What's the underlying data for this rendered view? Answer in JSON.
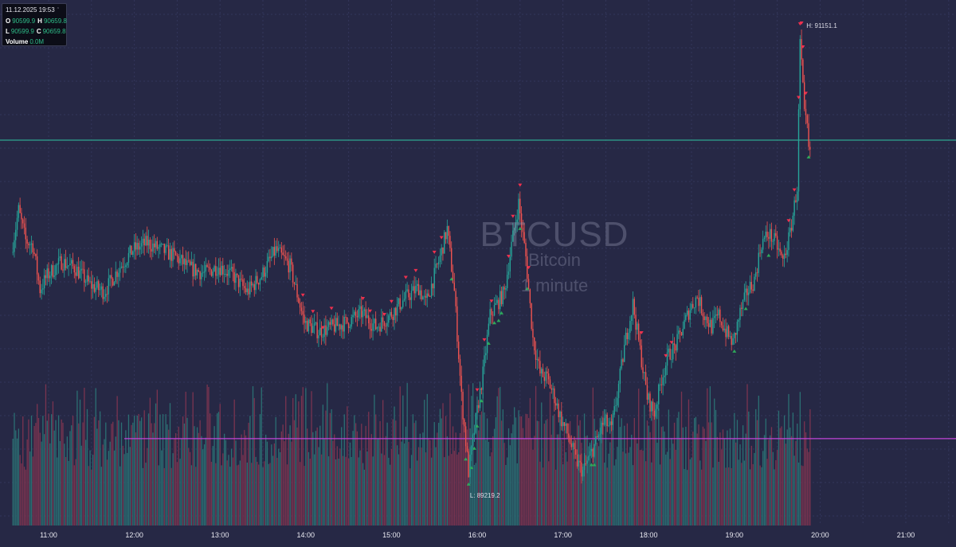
{
  "ohlc_panel": {
    "datetime": "11.12.2025 19:53",
    "o_label": "O",
    "o_value": "90599.9",
    "h_label": "H",
    "h_value": "90659.8",
    "l_label": "L",
    "l_value": "90599.9",
    "c_label": "C",
    "c_value": "90659.8",
    "volume_label": "Volume",
    "volume_value": "0.0M"
  },
  "watermark": {
    "symbol": "BTCUSD",
    "name": "Bitcoin",
    "interval": "1 minute"
  },
  "colors": {
    "background": "#262845",
    "grid": "#33365a",
    "up": "#26a69a",
    "down": "#ef5350",
    "volume_up": "#2b6f73",
    "volume_down": "#7a3450",
    "resistance_line": "#2fa58f",
    "support_line": "#c044d8",
    "sell_marker": "#f0304e",
    "buy_marker": "#2ea85a",
    "axis_text": "#e8e8f0"
  },
  "chart_data": {
    "type": "candlestick",
    "symbol": "BTCUSD",
    "interval": "1 minute",
    "x_tick_labels": [
      "11:00",
      "12:00",
      "13:00",
      "14:00",
      "15:00",
      "16:00",
      "17:00",
      "18:00",
      "19:00",
      "20:00",
      "21:00"
    ],
    "x_tick_times": [
      "11:00",
      "12:00",
      "13:00",
      "14:00",
      "15:00",
      "16:00",
      "17:00",
      "18:00",
      "19:00",
      "20:00",
      "21:00"
    ],
    "x_range": [
      "10:35",
      "21:35"
    ],
    "y_range": [
      89050,
      91300
    ],
    "high_annotation": {
      "label": "H: 91151.1",
      "time": "19:46",
      "price": 91151.1
    },
    "low_annotation": {
      "label": "L: 89219.2",
      "time": "15:56",
      "price": 89219.2
    },
    "horizontal_lines": [
      {
        "price": 90700,
        "role": "resistance"
      },
      {
        "price": 89422,
        "role": "support",
        "start_time": "11:53"
      }
    ],
    "price_path": [
      [
        "10:35",
        90220
      ],
      [
        "10:40",
        90400
      ],
      [
        "10:45",
        90270
      ],
      [
        "10:50",
        90250
      ],
      [
        "10:55",
        90060
      ],
      [
        "11:00",
        90120
      ],
      [
        "11:10",
        90180
      ],
      [
        "11:20",
        90150
      ],
      [
        "11:30",
        90080
      ],
      [
        "11:40",
        90050
      ],
      [
        "11:50",
        90150
      ],
      [
        "12:00",
        90230
      ],
      [
        "12:10",
        90260
      ],
      [
        "12:20",
        90230
      ],
      [
        "12:30",
        90200
      ],
      [
        "12:40",
        90150
      ],
      [
        "12:50",
        90130
      ],
      [
        "13:00",
        90160
      ],
      [
        "13:10",
        90120
      ],
      [
        "13:20",
        90050
      ],
      [
        "13:30",
        90120
      ],
      [
        "13:40",
        90230
      ],
      [
        "13:50",
        90160
      ],
      [
        "14:00",
        89920
      ],
      [
        "14:10",
        89880
      ],
      [
        "14:20",
        89900
      ],
      [
        "14:30",
        89920
      ],
      [
        "14:40",
        89960
      ],
      [
        "14:50",
        89900
      ],
      [
        "15:00",
        89950
      ],
      [
        "15:10",
        90020
      ],
      [
        "15:20",
        90070
      ],
      [
        "15:25",
        90000
      ],
      [
        "15:35",
        90200
      ],
      [
        "15:40",
        90320
      ],
      [
        "15:45",
        90050
      ],
      [
        "15:50",
        89600
      ],
      [
        "15:55",
        89280
      ],
      [
        "16:00",
        89500
      ],
      [
        "16:05",
        89700
      ],
      [
        "16:10",
        89950
      ],
      [
        "16:15",
        90000
      ],
      [
        "16:20",
        90050
      ],
      [
        "16:25",
        90250
      ],
      [
        "16:30",
        90430
      ],
      [
        "16:35",
        90200
      ],
      [
        "16:40",
        89850
      ],
      [
        "16:45",
        89700
      ],
      [
        "16:50",
        89680
      ],
      [
        "16:55",
        89600
      ],
      [
        "17:00",
        89500
      ],
      [
        "17:05",
        89430
      ],
      [
        "17:10",
        89330
      ],
      [
        "17:15",
        89280
      ],
      [
        "17:20",
        89350
      ],
      [
        "17:25",
        89420
      ],
      [
        "17:30",
        89500
      ],
      [
        "17:35",
        89460
      ],
      [
        "17:40",
        89650
      ],
      [
        "17:45",
        89850
      ],
      [
        "17:50",
        90000
      ],
      [
        "17:55",
        89800
      ],
      [
        "18:00",
        89600
      ],
      [
        "18:05",
        89530
      ],
      [
        "18:10",
        89680
      ],
      [
        "18:15",
        89780
      ],
      [
        "18:20",
        89820
      ],
      [
        "18:25",
        89900
      ],
      [
        "18:30",
        89980
      ],
      [
        "18:35",
        90030
      ],
      [
        "18:40",
        89950
      ],
      [
        "18:45",
        89900
      ],
      [
        "18:50",
        89950
      ],
      [
        "18:55",
        89880
      ],
      [
        "19:00",
        89830
      ],
      [
        "19:05",
        89960
      ],
      [
        "19:10",
        90050
      ],
      [
        "19:15",
        90100
      ],
      [
        "19:20",
        90260
      ],
      [
        "19:25",
        90300
      ],
      [
        "19:30",
        90260
      ],
      [
        "19:35",
        90180
      ],
      [
        "19:40",
        90300
      ],
      [
        "19:45",
        90500
      ],
      [
        "19:47",
        91120
      ],
      [
        "19:49",
        90920
      ],
      [
        "19:50",
        90800
      ],
      [
        "19:52",
        90750
      ],
      [
        "19:53",
        90660
      ]
    ],
    "sell_signals": [
      "13:58",
      "14:05",
      "14:12",
      "14:18",
      "14:40",
      "14:45",
      "14:55",
      "15:00",
      "15:10",
      "15:17",
      "15:30",
      "15:35",
      "16:00",
      "16:05",
      "16:10",
      "16:22",
      "16:25",
      "16:30",
      "16:36",
      "17:55",
      "18:12",
      "18:16",
      "19:38",
      "19:42",
      "19:45",
      "19:46",
      "19:47",
      "19:48",
      "19:50"
    ],
    "buy_signals": [
      "15:42",
      "15:52",
      "15:54",
      "15:56",
      "15:58",
      "16:00",
      "16:03",
      "16:08",
      "16:12",
      "16:15",
      "16:17",
      "16:30",
      "16:35",
      "17:20",
      "17:22",
      "19:00",
      "19:08",
      "19:24",
      "19:52"
    ],
    "grid": true
  }
}
